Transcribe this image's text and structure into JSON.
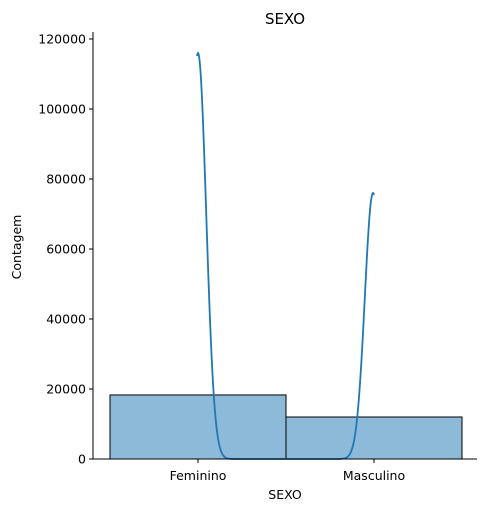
{
  "chart_data": {
    "type": "bar",
    "title": "SEXO",
    "xlabel": "SEXO",
    "ylabel": "Contagem",
    "categories": [
      "Feminino",
      "Masculino"
    ],
    "values": [
      18300,
      12000
    ],
    "ylim": [
      0,
      122000
    ],
    "yticks": [
      0,
      20000,
      40000,
      60000,
      80000,
      100000,
      120000
    ],
    "ytick_labels": [
      "0",
      "20000",
      "40000",
      "60000",
      "80000",
      "100000",
      "120000"
    ],
    "grid": false,
    "bar_color": "#8ebad9",
    "bar_edge_color": "#000000",
    "kde_color": "#1f77b4",
    "kde": {
      "peaks": [
        {
          "x": "Feminino",
          "y": 116000
        },
        {
          "x": "Masculino",
          "y": 76000
        }
      ]
    }
  }
}
